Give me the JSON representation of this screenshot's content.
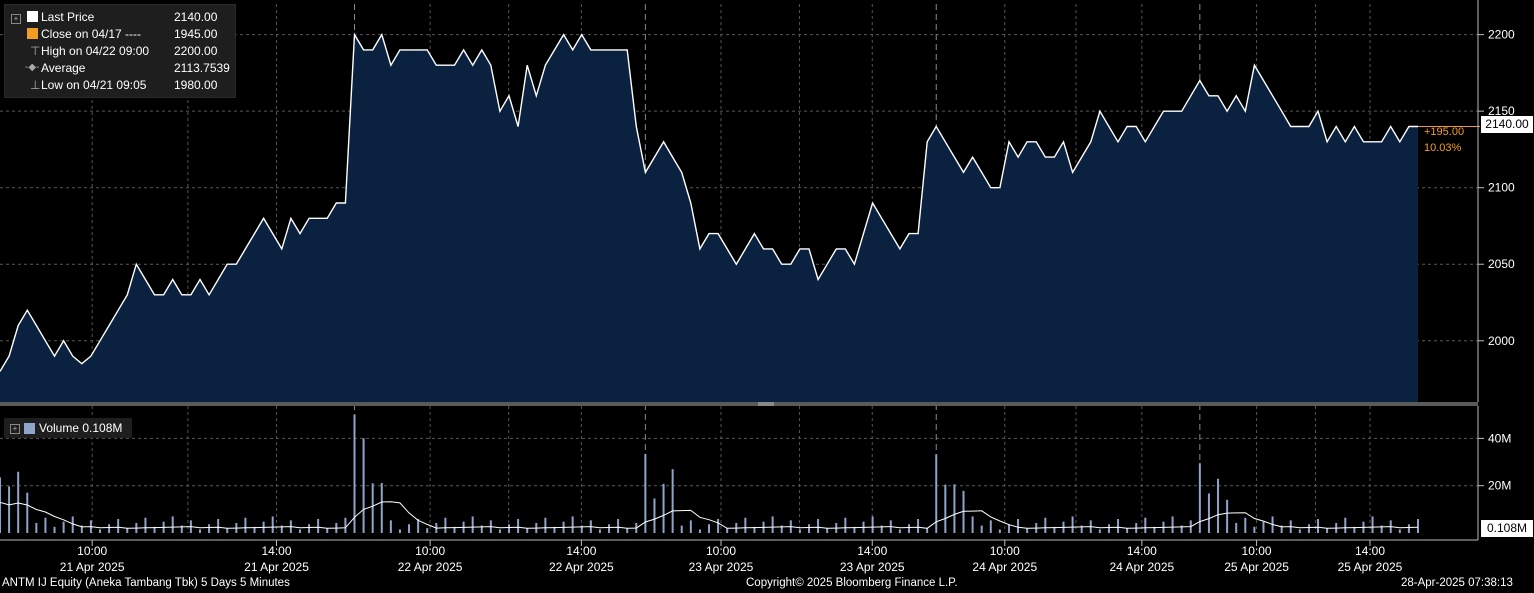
{
  "legend": {
    "last_price_label": "Last Price",
    "last_price_value": "2140.00",
    "close_label": "Close on 04/17 ----",
    "close_value": "1945.00",
    "high_label": "High on 04/22 09:00",
    "high_value": "2200.00",
    "avg_label": "Average",
    "avg_value": "2113.7539",
    "low_label": "Low on 04/21 09:05",
    "low_value": "1980.00"
  },
  "volume_legend": "Volume 0.108M",
  "last_price_tag": "2140.00",
  "change_abs": "+195.00",
  "change_pct": "10.03%",
  "volume_tag": "0.108M",
  "footer": {
    "left": "ANTM IJ Equity (Aneka Tambang Tbk) 5 Days 5 Minutes",
    "center": "Copyright© 2025 Bloomberg Finance L.P.",
    "right": "28-Apr-2025 07:38:13"
  },
  "colors": {
    "line": "#ffffff",
    "fill": "#0b2140",
    "orange": "#f39c24",
    "volume": "#8ea4c8",
    "legend_white": "#ffffff"
  },
  "chart_data": {
    "type": "area",
    "title": "",
    "y_ticks": [
      2000,
      2050,
      2100,
      2150,
      2200
    ],
    "y_tick_labels": [
      "2000",
      "2050",
      "2100",
      "2150",
      "2200"
    ],
    "ylim": [
      1960,
      2220
    ],
    "x_tick_labels": [
      [
        "10:00",
        "21 Apr 2025"
      ],
      [
        "14:00",
        "21 Apr 2025"
      ],
      [
        "10:00",
        "22 Apr 2025"
      ],
      [
        "14:00",
        "22 Apr 2025"
      ],
      [
        "10:00",
        "23 Apr 2025"
      ],
      [
        "14:00",
        "23 Apr 2025"
      ],
      [
        "10:00",
        "24 Apr 2025"
      ],
      [
        "14:00",
        "24 Apr 2025"
      ],
      [
        "10:00",
        "25 Apr 2025"
      ],
      [
        "14:00",
        "25 Apr 2025"
      ]
    ],
    "series": [
      {
        "name": "Last Price",
        "values": [
          1980,
          1990,
          2010,
          2020,
          2010,
          2000,
          1990,
          2000,
          1990,
          1985,
          1990,
          2000,
          2010,
          2020,
          2030,
          2050,
          2040,
          2030,
          2030,
          2040,
          2030,
          2030,
          2040,
          2030,
          2040,
          2050,
          2050,
          2060,
          2070,
          2080,
          2070,
          2060,
          2080,
          2070,
          2080,
          2080,
          2080,
          2090,
          2090,
          2200,
          2190,
          2190,
          2200,
          2180,
          2190,
          2190,
          2190,
          2190,
          2180,
          2180,
          2180,
          2190,
          2180,
          2190,
          2180,
          2150,
          2160,
          2140,
          2180,
          2160,
          2180,
          2190,
          2200,
          2190,
          2200,
          2190,
          2190,
          2190,
          2190,
          2190,
          2140,
          2110,
          2120,
          2130,
          2120,
          2110,
          2090,
          2060,
          2070,
          2070,
          2060,
          2050,
          2060,
          2070,
          2060,
          2060,
          2050,
          2050,
          2060,
          2060,
          2040,
          2050,
          2060,
          2060,
          2050,
          2070,
          2090,
          2080,
          2070,
          2060,
          2070,
          2070,
          2130,
          2140,
          2130,
          2120,
          2110,
          2120,
          2110,
          2100,
          2100,
          2130,
          2120,
          2130,
          2130,
          2120,
          2120,
          2130,
          2110,
          2120,
          2130,
          2150,
          2140,
          2130,
          2140,
          2140,
          2130,
          2140,
          2150,
          2150,
          2150,
          2160,
          2170,
          2160,
          2160,
          2150,
          2160,
          2150,
          2180,
          2170,
          2160,
          2150,
          2140,
          2140,
          2140,
          2150,
          2130,
          2140,
          2130,
          2140,
          2130,
          2130,
          2130,
          2140,
          2130,
          2140,
          2140
        ]
      },
      {
        "name": "Volume",
        "unit": "M",
        "y_ticks": [
          20,
          40
        ],
        "y_tick_labels": [
          "20M",
          "40M"
        ],
        "ylim": [
          0,
          52
        ]
      }
    ]
  }
}
